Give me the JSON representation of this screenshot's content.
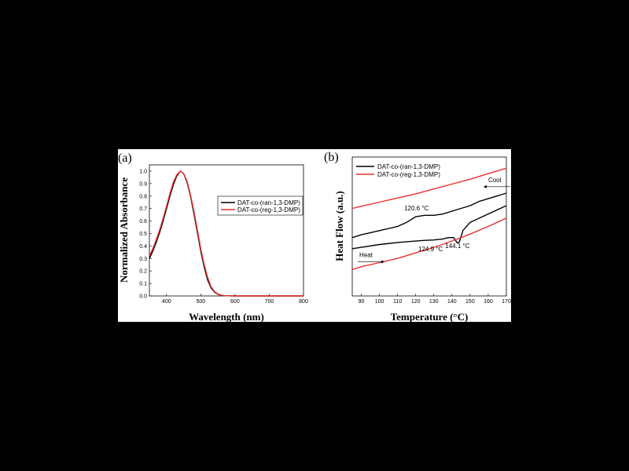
{
  "chart_data": [
    {
      "panel": "(a)",
      "type": "line",
      "xlabel": "Wavelength (nm)",
      "ylabel": "Normalized Absorbance",
      "xlim": [
        350,
        800
      ],
      "ylim": [
        0.0,
        1.05
      ],
      "xticks": [
        400,
        500,
        600,
        700,
        800
      ],
      "yticks": [
        "0.0",
        "0.1",
        "0.2",
        "0.3",
        "0.4",
        "0.5",
        "0.6",
        "0.7",
        "0.8",
        "0.9",
        "1.0"
      ],
      "legend_position": "center-right",
      "series": [
        {
          "name": "DAT-co-(ran-1,3-DMP)",
          "color": "#000000",
          "x": [
            350,
            360,
            370,
            380,
            390,
            400,
            410,
            420,
            430,
            440,
            450,
            460,
            470,
            480,
            490,
            500,
            510,
            520,
            530,
            540,
            550,
            560,
            570,
            580,
            600,
            650,
            700,
            750,
            800
          ],
          "y": [
            0.3,
            0.36,
            0.43,
            0.51,
            0.6,
            0.7,
            0.8,
            0.89,
            0.96,
            1.0,
            0.98,
            0.91,
            0.8,
            0.66,
            0.51,
            0.36,
            0.23,
            0.13,
            0.065,
            0.03,
            0.013,
            0.005,
            0.002,
            0.001,
            0.0,
            0.0,
            0.0,
            0.0,
            0.0
          ]
        },
        {
          "name": "DAT-co-(reg-1,3-DMP)",
          "color": "#e8312f",
          "x": [
            350,
            360,
            370,
            380,
            390,
            400,
            410,
            420,
            430,
            440,
            450,
            460,
            470,
            480,
            490,
            500,
            510,
            520,
            530,
            540,
            550,
            560,
            570,
            580,
            600,
            650,
            700,
            750,
            800
          ],
          "y": [
            0.32,
            0.38,
            0.45,
            0.53,
            0.62,
            0.72,
            0.82,
            0.91,
            0.97,
            1.0,
            0.98,
            0.92,
            0.81,
            0.68,
            0.53,
            0.38,
            0.25,
            0.15,
            0.075,
            0.035,
            0.015,
            0.006,
            0.002,
            0.001,
            0.0,
            0.0,
            0.0,
            0.0,
            0.0
          ]
        }
      ]
    },
    {
      "panel": "(b)",
      "type": "line",
      "xlabel": "Temperature (°C)",
      "ylabel": "Heat Flow (a.u.)",
      "xlim": [
        85,
        170
      ],
      "ylim": [
        0,
        100
      ],
      "xticks": [
        90,
        100,
        110,
        120,
        130,
        140,
        150,
        160,
        170
      ],
      "legend_position": "top-left",
      "series": [
        {
          "name": "DAT-co-(ran-1,3-DMP)",
          "color": "#000000",
          "x": [
            85,
            90,
            100,
            110,
            115,
            120,
            125,
            130,
            135,
            140,
            145,
            150,
            155,
            160,
            165,
            170
          ],
          "y": [
            42,
            44,
            47,
            50,
            53,
            57,
            58,
            58,
            59,
            61,
            63,
            65,
            68,
            70,
            72,
            74
          ]
        },
        {
          "color": "#000000",
          "x": [
            85,
            90,
            100,
            110,
            120,
            125,
            130,
            135,
            138,
            141,
            143,
            144.1,
            146,
            150,
            160,
            170
          ],
          "y": [
            34,
            35,
            37,
            38.5,
            39.5,
            40,
            40.3,
            41,
            42,
            42,
            38,
            39,
            47,
            53,
            59,
            65
          ]
        },
        {
          "name": "DAT-co-(reg-1,3-DMP)",
          "color": "#e8312f",
          "x": [
            85,
            90,
            100,
            110,
            120,
            130,
            140,
            150,
            160,
            170
          ],
          "y": [
            63,
            64.5,
            67.5,
            70.5,
            73.5,
            77,
            80.5,
            84,
            88,
            92
          ]
        },
        {
          "color": "#e8312f",
          "x": [
            85,
            90,
            100,
            110,
            120,
            130,
            140,
            150,
            160,
            170
          ],
          "y": [
            19,
            21,
            24,
            27,
            31,
            35,
            39.5,
            44.5,
            50,
            56
          ]
        }
      ],
      "annotations": [
        {
          "text": "120.6 °C",
          "x": 120.6,
          "y": 57
        },
        {
          "text": "124.9 °C",
          "x": 124.9,
          "y": 40
        },
        {
          "text": "144.1 °C",
          "x": 144.1,
          "y": 39
        },
        {
          "text": "Cool",
          "x": 160,
          "y": 82
        },
        {
          "text": "Heat",
          "x": 95,
          "y": 28
        }
      ]
    }
  ]
}
